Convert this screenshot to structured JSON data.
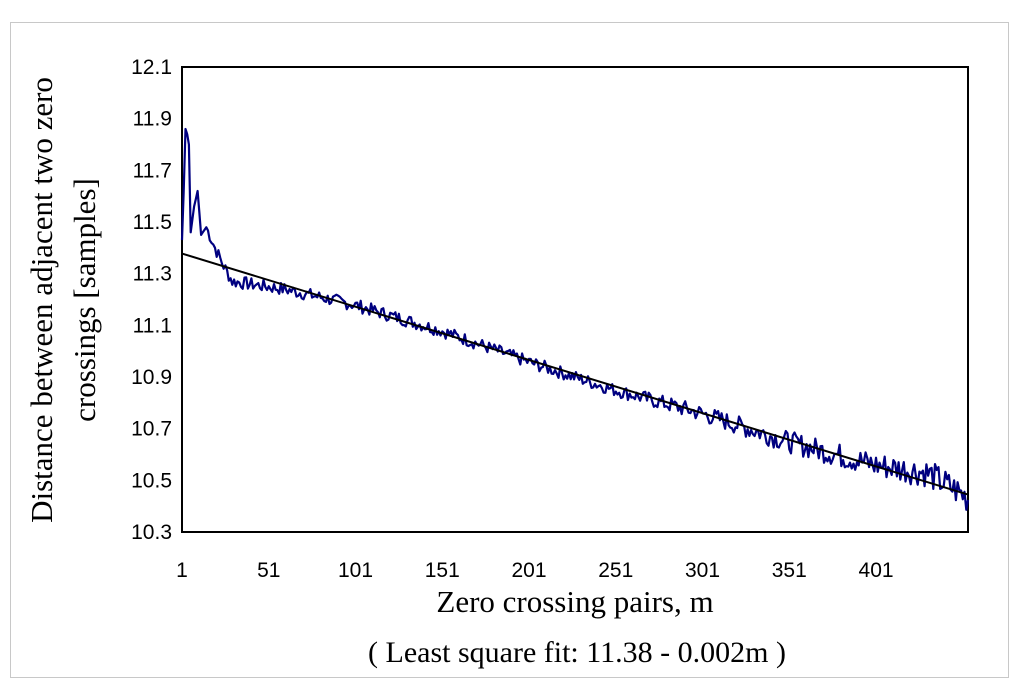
{
  "chart_data": {
    "type": "line",
    "xlabel": "Zero crossing pairs, m",
    "ylabel_line1": "Distance between adjacent two zero",
    "ylabel_line2": "crossings [samples]",
    "subtitle": "( Least square fit: 11.38 - 0.002m )",
    "xlim": [
      1,
      454
    ],
    "ylim": [
      10.3,
      12.1
    ],
    "x_ticks": [
      1,
      51,
      101,
      151,
      201,
      251,
      301,
      351,
      401
    ],
    "y_ticks": [
      10.3,
      10.5,
      10.7,
      10.9,
      11.1,
      11.3,
      11.5,
      11.7,
      11.9,
      12.1
    ],
    "grid": false,
    "legend": "none",
    "colors": {
      "measured": "#000080",
      "fit": "#000000"
    },
    "series": [
      {
        "kind": "measured",
        "x_start": 1,
        "x_end": 454,
        "noise_amplitude": 0.025,
        "noise_amplitude_end": 0.06,
        "anchors": [
          [
            1,
            11.43
          ],
          [
            2,
            11.62
          ],
          [
            3,
            11.86
          ],
          [
            4,
            11.84
          ],
          [
            5,
            11.8
          ],
          [
            6,
            11.46
          ],
          [
            8,
            11.56
          ],
          [
            10,
            11.62
          ],
          [
            12,
            11.45
          ],
          [
            15,
            11.48
          ],
          [
            20,
            11.4
          ],
          [
            25,
            11.33
          ],
          [
            30,
            11.27
          ],
          [
            60,
            11.24
          ],
          [
            100,
            11.18
          ],
          [
            150,
            11.08
          ],
          [
            200,
            10.96
          ],
          [
            250,
            10.85
          ],
          [
            300,
            10.76
          ],
          [
            350,
            10.65
          ],
          [
            400,
            10.56
          ],
          [
            430,
            10.53
          ],
          [
            450,
            10.45
          ],
          [
            454,
            10.43
          ]
        ]
      },
      {
        "kind": "fit",
        "intercept": 11.38,
        "slope": -0.00206
      }
    ]
  }
}
